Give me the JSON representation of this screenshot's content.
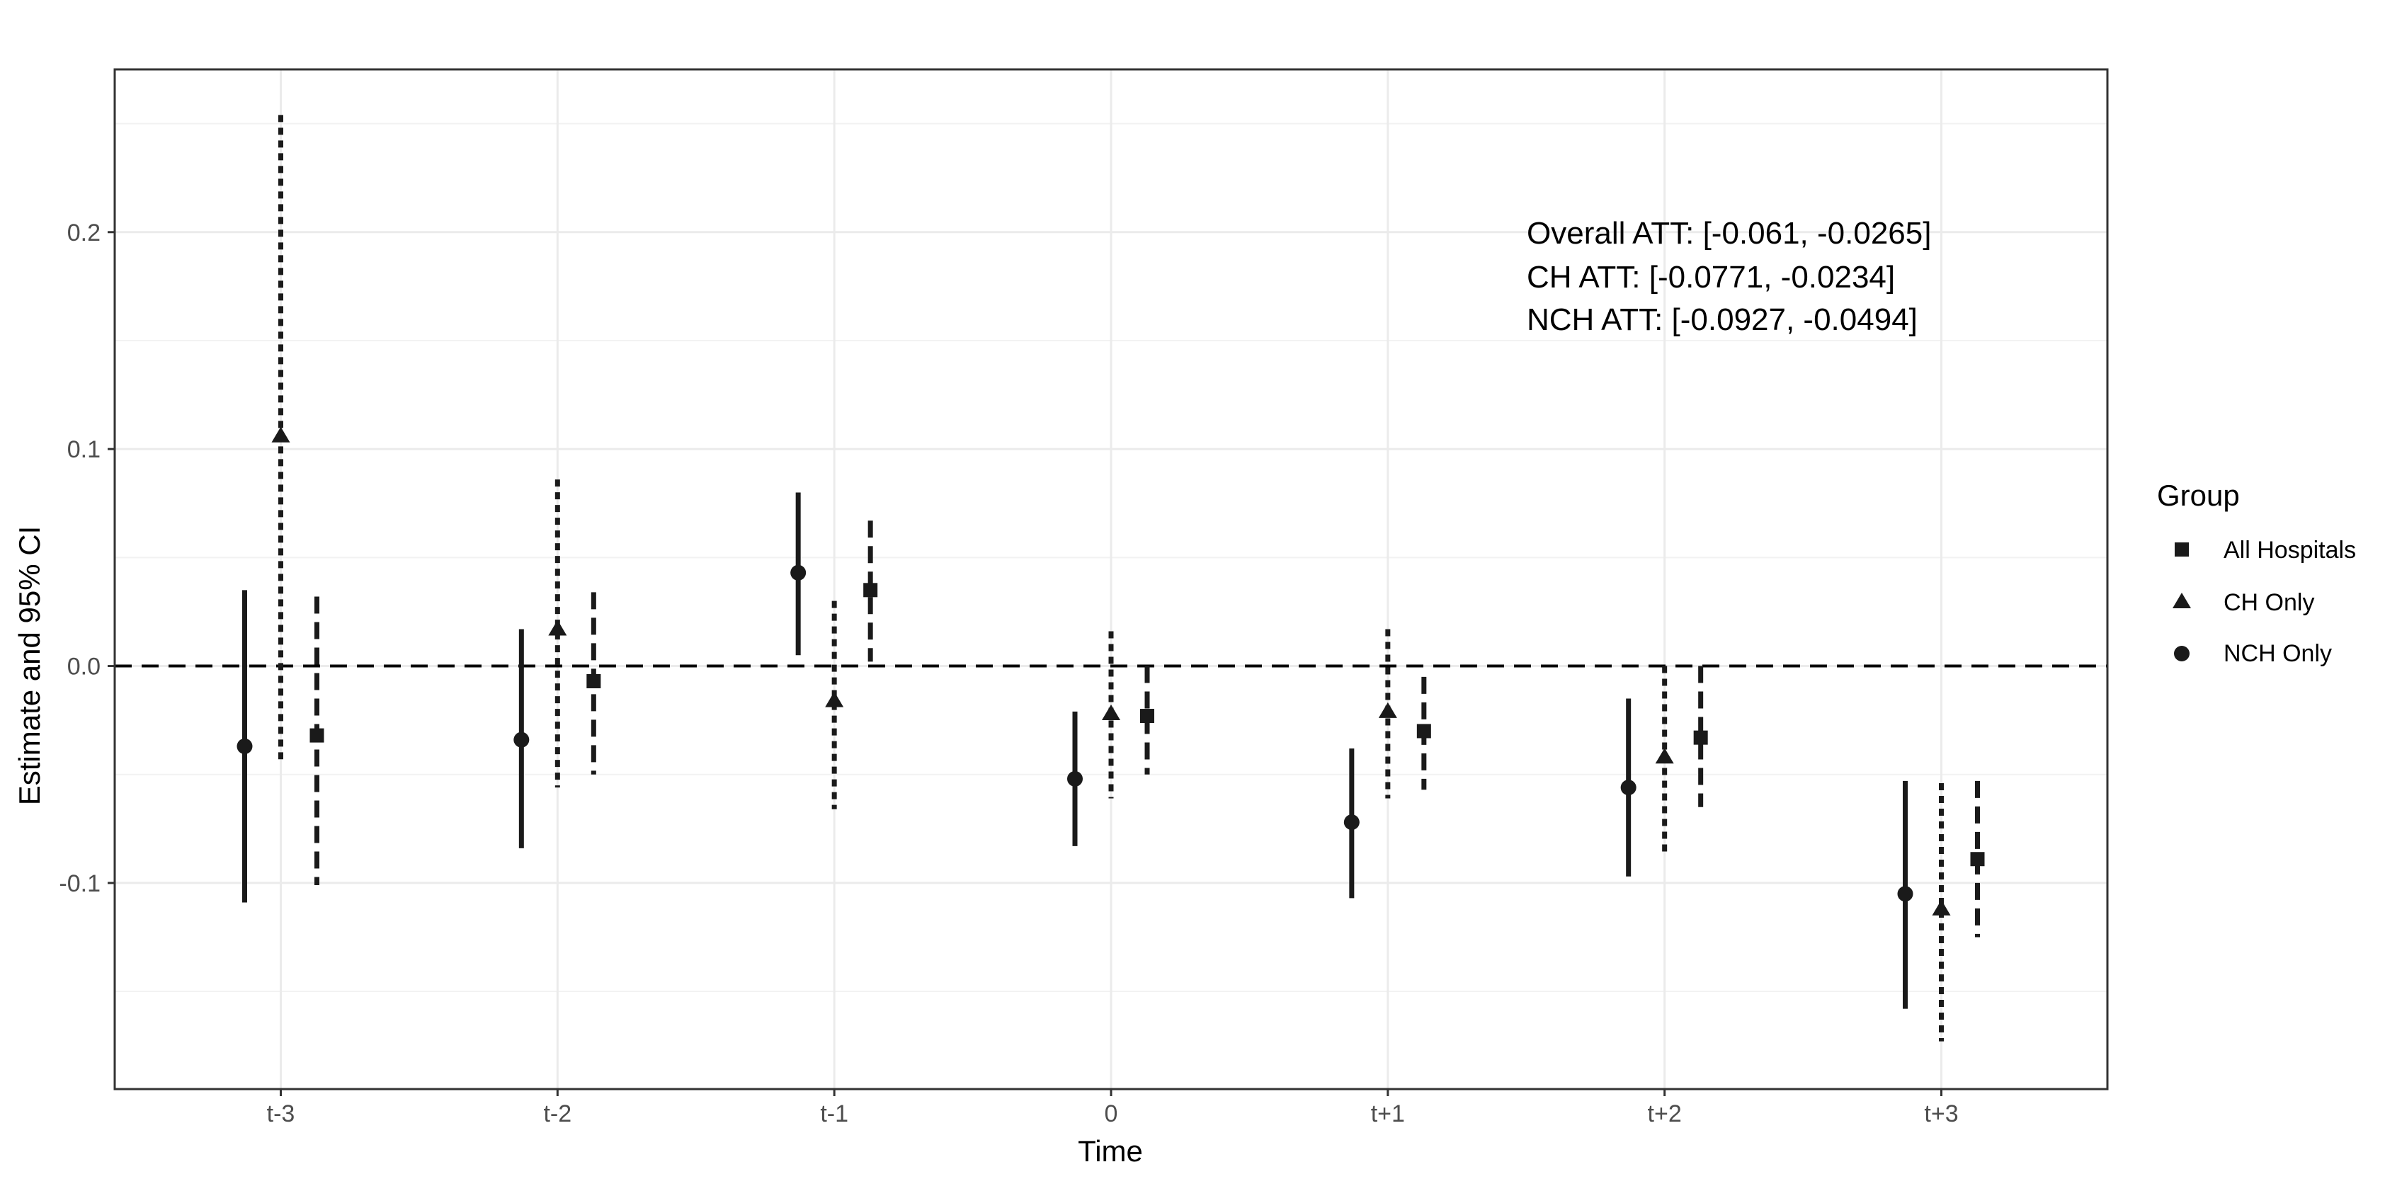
{
  "chart_data": {
    "type": "scatter",
    "xlabel": "Time",
    "ylabel": "Estimate and 95% CI",
    "categories": [
      "t-3",
      "t-2",
      "t-1",
      "0",
      "t+1",
      "t+2",
      "t+3"
    ],
    "ylim": [
      -0.195,
      0.275
    ],
    "yticks": [
      -0.1,
      0.0,
      0.1,
      0.2
    ],
    "ytick_labels": [
      "-0.1",
      "0.0",
      "0.1",
      "0.2"
    ],
    "reference_line": 0,
    "grid": true,
    "legend": {
      "title": "Group",
      "position": "right",
      "entries": [
        "All Hospitals",
        "CH Only",
        "NCH Only"
      ]
    },
    "annotations": [
      "Overall ATT: [-0.061, -0.0265]",
      "CH ATT: [-0.0771, -0.0234]",
      "NCH ATT: [-0.0927, -0.0494]"
    ],
    "series": [
      {
        "name": "NCH Only",
        "marker": "circle",
        "linestyle": "solid",
        "estimate": [
          -0.037,
          -0.034,
          0.043,
          -0.052,
          -0.072,
          -0.056,
          -0.105
        ],
        "lower": [
          -0.109,
          -0.084,
          0.005,
          -0.083,
          -0.107,
          -0.097,
          -0.158
        ],
        "upper": [
          0.035,
          0.017,
          0.08,
          -0.021,
          -0.038,
          -0.015,
          -0.053
        ]
      },
      {
        "name": "CH Only",
        "marker": "triangle",
        "linestyle": "dotted",
        "estimate": [
          0.106,
          0.017,
          -0.016,
          -0.022,
          -0.021,
          -0.042,
          -0.112
        ],
        "lower": [
          -0.043,
          -0.056,
          -0.066,
          -0.061,
          -0.061,
          -0.087,
          -0.173
        ],
        "upper": [
          0.254,
          0.086,
          0.03,
          0.016,
          0.017,
          0.0,
          -0.054
        ]
      },
      {
        "name": "All Hospitals",
        "marker": "square",
        "linestyle": "dashed",
        "estimate": [
          -0.032,
          -0.007,
          0.035,
          -0.023,
          -0.03,
          -0.033,
          -0.089
        ],
        "lower": [
          -0.101,
          -0.05,
          0.002,
          -0.05,
          -0.057,
          -0.065,
          -0.125
        ],
        "upper": [
          0.032,
          0.034,
          0.067,
          0.0,
          -0.005,
          0.0,
          -0.053
        ]
      }
    ]
  }
}
